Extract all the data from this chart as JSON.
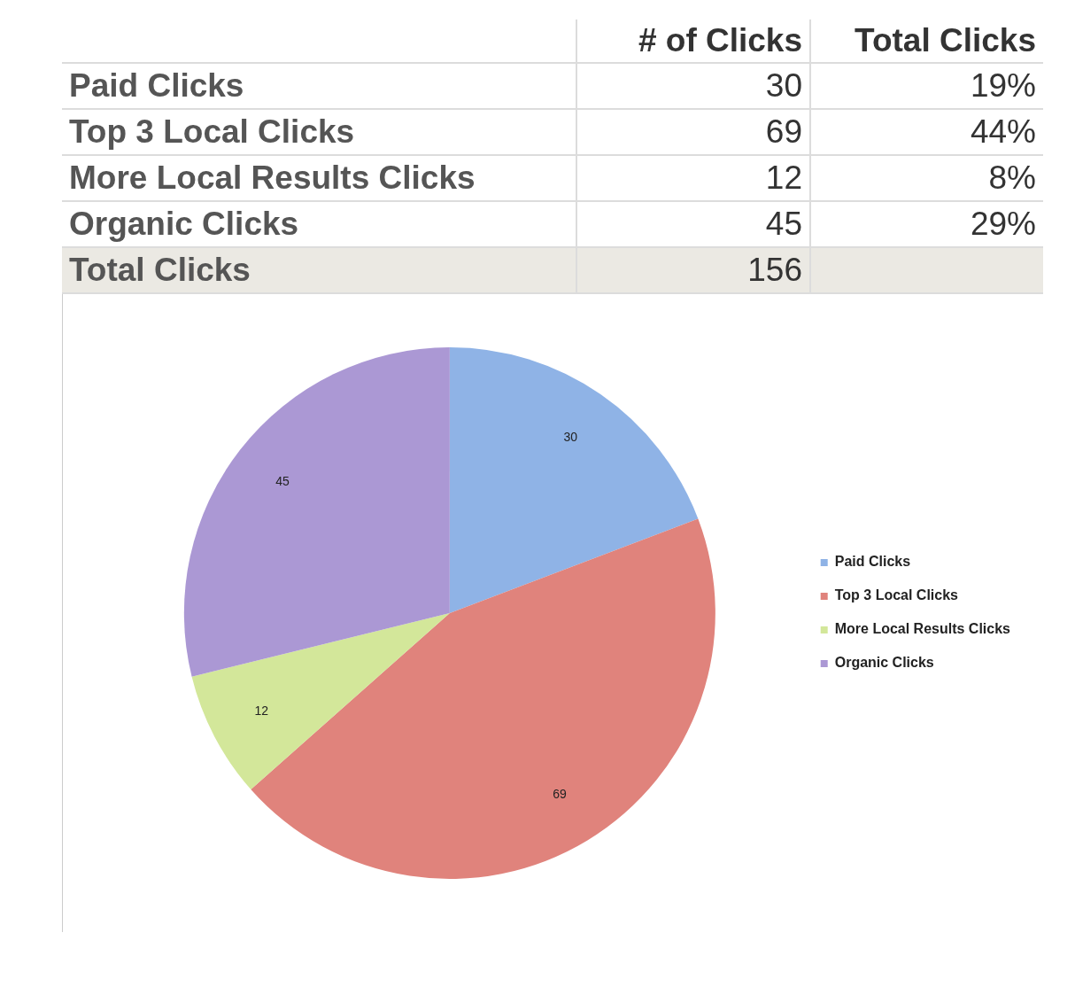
{
  "chart_data": [
    {
      "type": "other",
      "categories": [
        "# of Clicks",
        "Total Clicks"
      ],
      "y_categories": [
        "Paid Clicks",
        "Top 3 Local Clicks",
        "More Local Results Clicks",
        "Organic Clicks",
        "Total Clicks"
      ],
      "cell_labels": [
        [
          "30",
          "19%"
        ],
        [
          "69",
          "44%"
        ],
        [
          "12",
          "8%"
        ],
        [
          "45",
          "29%"
        ],
        [
          "156",
          null
        ]
      ]
    },
    {
      "type": "pie",
      "categories": [
        "Paid Clicks",
        "Top 3 Local Clicks",
        "More Local Results Clicks",
        "Organic Clicks"
      ],
      "values": [
        30,
        69,
        12,
        45
      ],
      "colors": [
        "#8fb3e6",
        "#e0837c",
        "#d3e79a",
        "#ab98d4"
      ],
      "data_labels": true,
      "legend": "right"
    }
  ]
}
